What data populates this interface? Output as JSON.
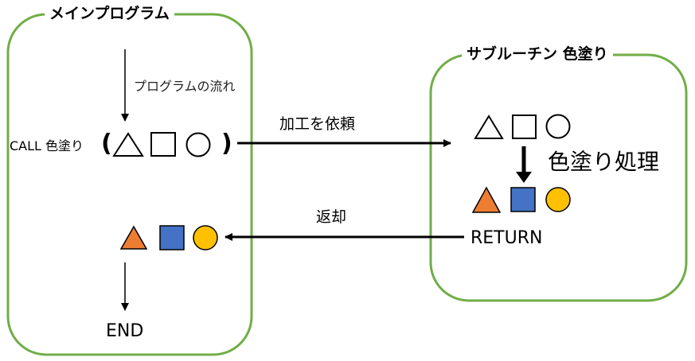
{
  "main_program": {
    "title": "メインプログラム",
    "flow_note": "プログラムの流れ",
    "call_text": "CALL 色塗り",
    "paren_open": "(",
    "paren_close": ")",
    "end_text": "END"
  },
  "subroutine": {
    "title": "サブルーチン 色塗り",
    "process_label": "色塗り処理",
    "return_text": "RETURN"
  },
  "arrows": {
    "request_label": "加工を依頼",
    "return_label": "返却"
  },
  "colors": {
    "box_border": "#70ad47",
    "triangle_fill": "#ed7d31",
    "square_fill": "#4472c4",
    "circle_fill": "#ffc000",
    "outline": "#000000"
  },
  "shapes": [
    "triangle",
    "square",
    "circle"
  ]
}
